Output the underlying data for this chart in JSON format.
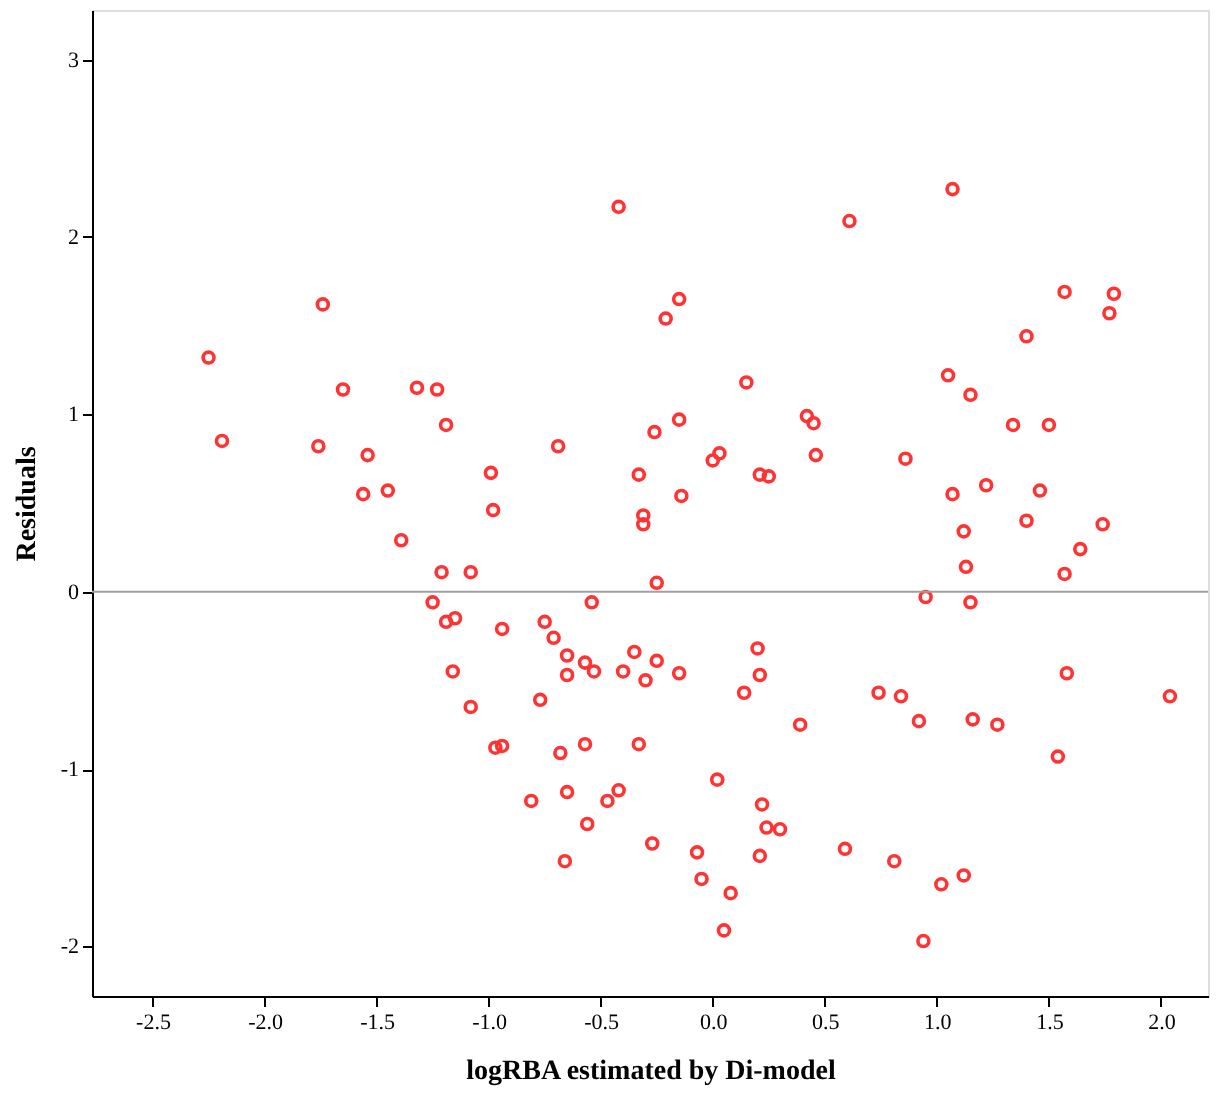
{
  "chart_data": {
    "type": "scatter",
    "xlabel": "logRBA estimated by Di-model",
    "ylabel": "Residuals",
    "x": [
      -0.42,
      -1.74,
      -2.25,
      -1.65,
      -1.32,
      -1.23,
      -1.19,
      -0.69,
      -0.26,
      -2.19,
      -1.76,
      -1.54,
      -1.56,
      -1.45,
      -0.99,
      -0.98,
      -0.33,
      -0.31,
      -0.31,
      -1.39,
      -1.21,
      -1.08,
      -0.25,
      -1.25,
      -0.54,
      1.07,
      0.61,
      -0.15,
      -0.21,
      1.57,
      1.79,
      1.77,
      1.4,
      0.15,
      1.05,
      1.15,
      -0.15,
      1.34,
      1.5,
      0.42,
      0.45,
      0.0,
      0.03,
      0.46,
      0.86,
      0.21,
      0.25,
      -0.14,
      1.07,
      1.22,
      1.46,
      1.4,
      1.74,
      1.12,
      1.64,
      1.13,
      1.57,
      0.95,
      1.15,
      -1.19,
      -1.15,
      -0.94,
      -0.75,
      -0.71,
      -0.65,
      -0.57,
      -0.53,
      -0.65,
      -1.16,
      -0.4,
      -0.35,
      -0.3,
      -0.25,
      -1.08,
      -0.77,
      -0.97,
      -0.94,
      -0.68,
      -0.57,
      -0.33,
      -0.81,
      -0.65,
      -0.47,
      -0.42,
      -0.56,
      -0.27,
      -0.66,
      -0.15,
      0.2,
      0.21,
      0.14,
      0.39,
      0.74,
      0.84,
      0.92,
      1.16,
      1.27,
      1.58,
      1.54,
      2.04,
      0.02,
      0.22,
      0.24,
      0.3,
      -0.07,
      0.21,
      0.59,
      0.81,
      -0.05,
      0.08,
      1.12,
      1.02,
      0.05,
      0.94
    ],
    "series": [
      {
        "color": "#ff3333",
        "values": [
          2.17,
          1.62,
          1.32,
          1.14,
          1.15,
          1.14,
          0.94,
          0.82,
          0.9,
          0.85,
          0.82,
          0.77,
          0.55,
          0.57,
          0.67,
          0.46,
          0.66,
          0.43,
          0.38,
          0.29,
          0.11,
          0.11,
          0.05,
          -0.06,
          -0.06,
          2.27,
          2.09,
          1.65,
          1.54,
          1.69,
          1.68,
          1.57,
          1.44,
          1.18,
          1.22,
          1.11,
          0.97,
          0.94,
          0.94,
          0.99,
          0.95,
          0.74,
          0.78,
          0.77,
          0.75,
          0.66,
          0.65,
          0.54,
          0.55,
          0.6,
          0.57,
          0.4,
          0.38,
          0.34,
          0.24,
          0.14,
          0.1,
          -0.03,
          -0.06,
          -0.17,
          -0.15,
          -0.21,
          -0.17,
          -0.26,
          -0.36,
          -0.4,
          -0.45,
          -0.47,
          -0.45,
          -0.45,
          -0.34,
          -0.5,
          -0.39,
          -0.65,
          -0.61,
          -0.88,
          -0.87,
          -0.91,
          -0.86,
          -0.86,
          -1.18,
          -1.13,
          -1.18,
          -1.12,
          -1.31,
          -1.42,
          -1.52,
          -0.46,
          -0.32,
          -0.47,
          -0.57,
          -0.75,
          -0.57,
          -0.59,
          -0.73,
          -0.72,
          -0.75,
          -0.46,
          -0.93,
          -0.59,
          -1.06,
          -1.2,
          -1.33,
          -1.34,
          -1.47,
          -1.49,
          -1.45,
          -1.52,
          -1.62,
          -1.7,
          -1.6,
          -1.65,
          -1.91,
          -1.97
        ]
      }
    ],
    "xlim": [
      -2.77,
      2.21
    ],
    "xticks": [
      {
        "value": -2.5,
        "label": "-2.5"
      },
      {
        "value": -2,
        "label": "-2.0"
      },
      {
        "value": -1.5,
        "label": "-1.5"
      },
      {
        "value": -1,
        "label": "-1.0"
      },
      {
        "value": -0.5,
        "label": "-0.5"
      },
      {
        "value": 0,
        "label": "0.0"
      },
      {
        "value": 0.5,
        "label": "0.5"
      },
      {
        "value": 1,
        "label": "1.0"
      },
      {
        "value": 1.5,
        "label": "1.5"
      },
      {
        "value": 2,
        "label": "2.0"
      }
    ],
    "ylim": [
      -2.28,
      3.28
    ],
    "yticks": [
      -2,
      -1,
      0,
      1,
      2,
      3
    ],
    "ref_lines": [
      {
        "axis": "y",
        "value": 0,
        "color": "#a0a0a0"
      }
    ],
    "grid": false
  }
}
